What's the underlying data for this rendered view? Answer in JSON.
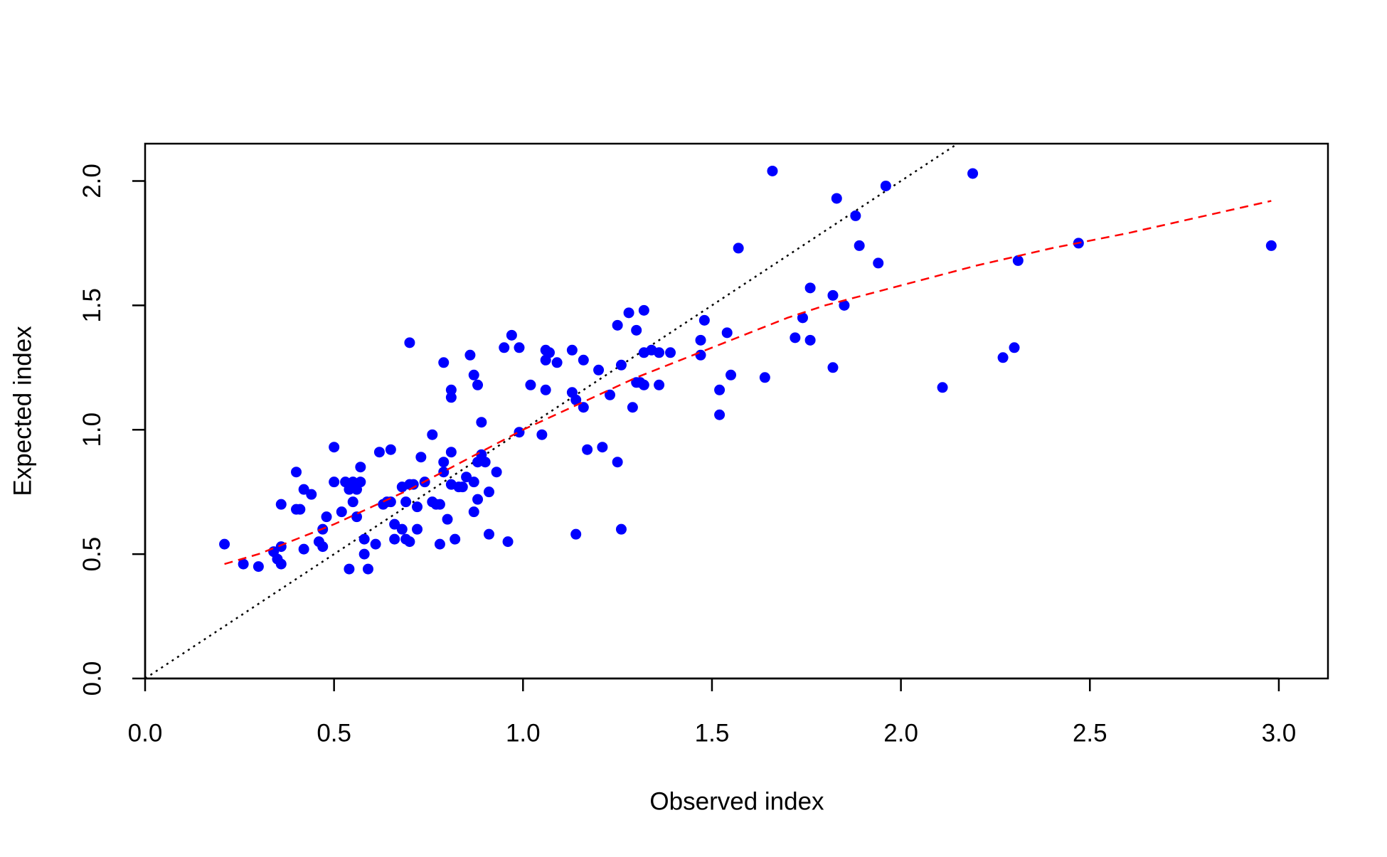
{
  "chart_data": {
    "type": "scatter",
    "x_label": "Observed index",
    "y_label": "Expected index",
    "xlim": [
      0,
      3.13
    ],
    "ylim": [
      0,
      2.15
    ],
    "xticks": [
      {
        "value": 0,
        "label": "0.0"
      },
      {
        "value": 0.5,
        "label": "0.5"
      },
      {
        "value": 1,
        "label": "1.0"
      },
      {
        "value": 1.5,
        "label": "1.5"
      },
      {
        "value": 2,
        "label": "2.0"
      },
      {
        "value": 2.5,
        "label": "2.5"
      },
      {
        "value": 3,
        "label": "3.0"
      }
    ],
    "yticks": [
      {
        "value": 0,
        "label": "0.0"
      },
      {
        "value": 0.5,
        "label": "0.5"
      },
      {
        "value": 1,
        "label": "1.0"
      },
      {
        "value": 1.5,
        "label": "1.5"
      },
      {
        "value": 2,
        "label": "2.0"
      }
    ],
    "points": {
      "color": "#0000ff",
      "x": [
        0.21,
        0.26,
        0.3,
        0.34,
        0.35,
        0.36,
        0.36,
        0.36,
        0.4,
        0.4,
        0.41,
        0.42,
        0.42,
        0.44,
        0.46,
        0.47,
        0.47,
        0.48,
        0.5,
        0.5,
        0.52,
        0.53,
        0.54,
        0.54,
        0.55,
        0.55,
        0.56,
        0.56,
        0.57,
        0.57,
        0.58,
        0.58,
        0.59,
        0.61,
        0.62,
        0.63,
        0.64,
        0.65,
        0.65,
        0.66,
        0.66,
        0.68,
        0.68,
        0.69,
        0.7,
        0.69,
        0.7,
        0.7,
        0.71,
        0.72,
        0.72,
        0.73,
        0.74,
        0.76,
        0.76,
        0.77,
        0.78,
        0.78,
        0.79,
        0.79,
        0.79,
        0.8,
        0.81,
        0.81,
        0.81,
        0.81,
        0.82,
        0.83,
        0.84,
        0.85,
        0.86,
        0.87,
        0.87,
        0.87,
        0.88,
        0.88,
        0.88,
        0.89,
        0.89,
        0.9,
        0.91,
        0.91,
        0.93,
        0.95,
        0.96,
        0.97,
        0.99,
        0.99,
        1.02,
        1.05,
        1.06,
        1.06,
        1.06,
        1.07,
        1.09,
        1.13,
        1.13,
        1.14,
        1.14,
        1.16,
        1.16,
        1.17,
        1.2,
        1.21,
        1.23,
        1.25,
        1.26,
        1.25,
        1.26,
        1.28,
        1.29,
        1.3,
        1.3,
        1.31,
        1.32,
        1.32,
        1.32,
        1.34,
        1.36,
        1.36,
        1.39,
        1.47,
        1.47,
        1.48,
        1.52,
        1.52,
        1.54,
        1.55,
        1.57,
        1.64,
        1.66,
        1.72,
        1.74,
        1.76,
        1.76,
        1.82,
        1.82,
        1.83,
        1.85,
        1.88,
        1.89,
        1.94,
        1.96,
        2.11,
        2.19,
        2.27,
        2.3,
        2.31,
        2.47,
        2.98
      ],
      "values": [
        0.54,
        0.46,
        0.45,
        0.51,
        0.48,
        0.53,
        0.46,
        0.7,
        0.68,
        0.83,
        0.68,
        0.76,
        0.52,
        0.74,
        0.55,
        0.53,
        0.6,
        0.65,
        0.93,
        0.79,
        0.67,
        0.79,
        0.44,
        0.76,
        0.79,
        0.71,
        0.76,
        0.65,
        0.85,
        0.79,
        0.5,
        0.56,
        0.44,
        0.54,
        0.91,
        0.7,
        0.71,
        0.92,
        0.71,
        0.62,
        0.56,
        0.77,
        0.6,
        0.56,
        1.35,
        0.71,
        0.78,
        0.55,
        0.78,
        0.69,
        0.6,
        0.89,
        0.79,
        0.98,
        0.71,
        0.7,
        0.54,
        0.7,
        1.27,
        0.83,
        0.87,
        0.64,
        0.91,
        1.16,
        1.13,
        0.78,
        0.56,
        0.77,
        0.77,
        0.81,
        1.3,
        0.79,
        0.67,
        1.22,
        1.18,
        0.72,
        0.87,
        0.9,
        1.03,
        0.87,
        0.75,
        0.58,
        0.83,
        1.33,
        0.55,
        1.38,
        1.33,
        0.99,
        1.18,
        0.98,
        1.32,
        1.28,
        1.16,
        1.31,
        1.27,
        1.32,
        1.15,
        0.58,
        1.12,
        1.28,
        1.09,
        0.92,
        1.24,
        0.93,
        1.14,
        1.42,
        1.26,
        0.87,
        0.6,
        1.47,
        1.09,
        1.19,
        1.4,
        1.19,
        1.48,
        1.31,
        1.18,
        1.32,
        1.18,
        1.31,
        1.31,
        1.3,
        1.36,
        1.44,
        1.16,
        1.06,
        1.39,
        1.22,
        1.73,
        1.21,
        2.04,
        1.37,
        1.45,
        1.57,
        1.36,
        1.54,
        1.25,
        1.93,
        1.5,
        1.86,
        1.74,
        1.67,
        1.98,
        1.17,
        2.03,
        1.29,
        1.33,
        1.68,
        1.75,
        1.74
      ]
    },
    "smooth": {
      "color": "#ff0000",
      "x": [
        0.21,
        0.3,
        0.4,
        0.5,
        0.6,
        0.7,
        0.8,
        0.9,
        1.0,
        1.1,
        1.2,
        1.3,
        1.4,
        1.5,
        1.6,
        1.7,
        1.8,
        2.0,
        2.2,
        2.4,
        2.6,
        2.98
      ],
      "values": [
        0.46,
        0.5,
        0.56,
        0.62,
        0.69,
        0.76,
        0.84,
        0.92,
        1.0,
        1.07,
        1.14,
        1.21,
        1.27,
        1.33,
        1.39,
        1.45,
        1.5,
        1.58,
        1.66,
        1.73,
        1.79,
        1.92
      ]
    },
    "identity": {
      "color": "#000000",
      "x": [
        0,
        2.15
      ],
      "values": [
        0,
        2.15
      ]
    }
  }
}
